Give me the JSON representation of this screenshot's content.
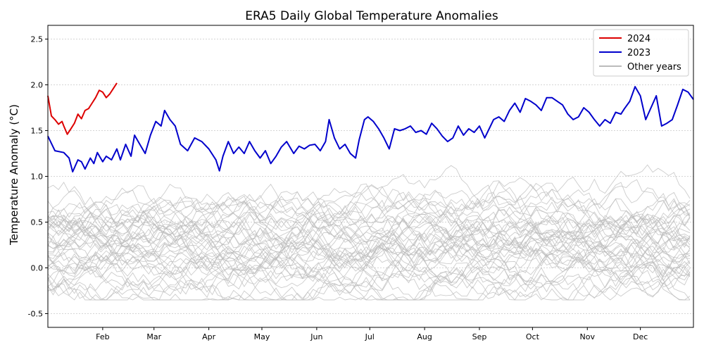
{
  "chart_data": {
    "type": "line",
    "title": "ERA5 Daily Global Temperature Anomalies",
    "xlabel": "",
    "ylabel": "Temperature Anomaly (°C)",
    "x_unit": "day of year",
    "xlim": [
      1,
      366
    ],
    "ylim": [
      -0.65,
      2.65
    ],
    "grid": "horizontal dotted",
    "x_ticks": [
      {
        "label": "Feb",
        "day": 32
      },
      {
        "label": "Mar",
        "day": 61
      },
      {
        "label": "Apr",
        "day": 92
      },
      {
        "label": "May",
        "day": 122
      },
      {
        "label": "Jun",
        "day": 153
      },
      {
        "label": "Jul",
        "day": 183
      },
      {
        "label": "Aug",
        "day": 214
      },
      {
        "label": "Sep",
        "day": 245
      },
      {
        "label": "Oct",
        "day": 275
      },
      {
        "label": "Nov",
        "day": 306
      },
      {
        "label": "Dec",
        "day": 336
      }
    ],
    "y_ticks": [
      -0.5,
      0.0,
      0.5,
      1.0,
      1.5,
      2.0,
      2.5
    ],
    "legend": {
      "position": "top-right",
      "entries": [
        {
          "label": "2024",
          "color": "#dd0000"
        },
        {
          "label": "2023",
          "color": "#0000cc"
        },
        {
          "label": "Other years",
          "color": "#bbbbbb"
        }
      ]
    },
    "series": [
      {
        "name": "2024",
        "color": "#dd0000",
        "x": [
          1,
          3,
          5,
          7,
          9,
          10,
          12,
          14,
          16,
          18,
          20,
          22,
          24,
          26,
          28,
          30,
          32,
          34,
          36,
          38,
          40
        ],
        "values": [
          1.88,
          1.66,
          1.62,
          1.57,
          1.6,
          1.55,
          1.46,
          1.52,
          1.58,
          1.68,
          1.63,
          1.72,
          1.74,
          1.8,
          1.86,
          1.94,
          1.92,
          1.86,
          1.9,
          1.96,
          2.02
        ]
      },
      {
        "name": "2023",
        "color": "#0000cc",
        "x": [
          1,
          5,
          10,
          13,
          15,
          18,
          20,
          22,
          25,
          27,
          29,
          32,
          34,
          37,
          40,
          42,
          45,
          48,
          50,
          53,
          56,
          59,
          62,
          65,
          67,
          70,
          73,
          76,
          80,
          84,
          88,
          92,
          96,
          98,
          100,
          103,
          106,
          109,
          112,
          115,
          118,
          121,
          124,
          127,
          130,
          133,
          136,
          140,
          143,
          146,
          149,
          152,
          155,
          158,
          160,
          163,
          166,
          169,
          172,
          175,
          177,
          180,
          182,
          185,
          188,
          191,
          194,
          197,
          200,
          203,
          206,
          209,
          212,
          215,
          218,
          221,
          224,
          227,
          230,
          233,
          236,
          239,
          242,
          245,
          248,
          250,
          253,
          256,
          259,
          262,
          265,
          268,
          271,
          274,
          277,
          280,
          283,
          286,
          289,
          292,
          295,
          298,
          301,
          304,
          307,
          310,
          313,
          316,
          319,
          322,
          325,
          327,
          330,
          333,
          336,
          339,
          342,
          345,
          348,
          351,
          354,
          357,
          360,
          363,
          366
        ],
        "values": [
          1.44,
          1.28,
          1.26,
          1.2,
          1.05,
          1.18,
          1.16,
          1.08,
          1.2,
          1.14,
          1.26,
          1.16,
          1.22,
          1.18,
          1.3,
          1.18,
          1.35,
          1.22,
          1.45,
          1.35,
          1.25,
          1.45,
          1.6,
          1.55,
          1.72,
          1.62,
          1.55,
          1.35,
          1.28,
          1.42,
          1.38,
          1.3,
          1.18,
          1.06,
          1.22,
          1.38,
          1.25,
          1.32,
          1.25,
          1.38,
          1.28,
          1.2,
          1.28,
          1.14,
          1.22,
          1.32,
          1.38,
          1.25,
          1.33,
          1.3,
          1.34,
          1.35,
          1.28,
          1.38,
          1.62,
          1.42,
          1.3,
          1.35,
          1.25,
          1.2,
          1.4,
          1.62,
          1.65,
          1.6,
          1.52,
          1.42,
          1.3,
          1.52,
          1.5,
          1.52,
          1.55,
          1.48,
          1.5,
          1.46,
          1.58,
          1.52,
          1.44,
          1.38,
          1.42,
          1.55,
          1.45,
          1.52,
          1.48,
          1.55,
          1.42,
          1.5,
          1.62,
          1.65,
          1.6,
          1.72,
          1.8,
          1.7,
          1.85,
          1.82,
          1.78,
          1.72,
          1.86,
          1.86,
          1.82,
          1.78,
          1.68,
          1.62,
          1.65,
          1.75,
          1.7,
          1.62,
          1.55,
          1.62,
          1.58,
          1.7,
          1.68,
          1.74,
          1.82,
          1.98,
          1.88,
          1.62,
          1.75,
          1.88,
          1.55,
          1.58,
          1.62,
          1.78,
          1.95,
          1.92,
          1.84
        ]
      }
    ],
    "background_series": {
      "name": "Other years",
      "color": "#bbbbbb",
      "count": 44,
      "x_step_days": 3,
      "value_range": [
        -0.35,
        2.0
      ]
    }
  }
}
